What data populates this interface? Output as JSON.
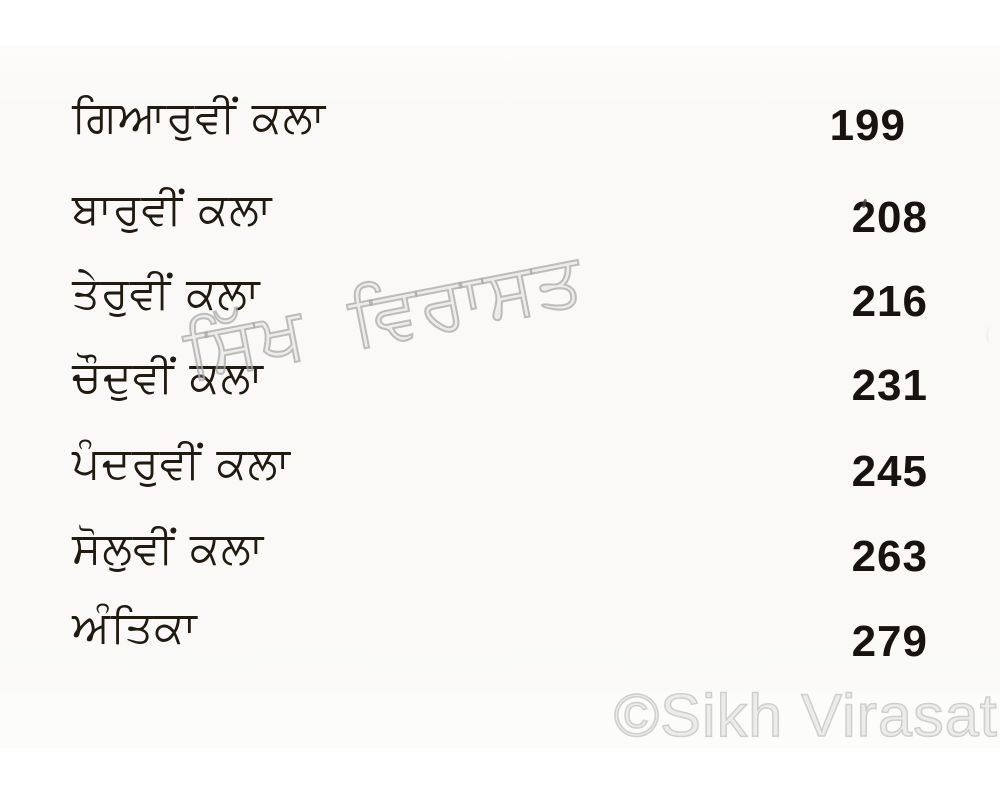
{
  "document": {
    "entries": [
      {
        "title": "ਗਿਆਰੁਵੀਂ ਕਲਾ",
        "page": "199"
      },
      {
        "title": "ਬਾਰੁਵੀਂ ਕਲਾ",
        "page": "208"
      },
      {
        "title": "ਤੇਰੁਵੀਂ ਕਲਾ",
        "page": "216"
      },
      {
        "title": "ਚੌਦੁਵੀਂ ਕਲਾ",
        "page": "231"
      },
      {
        "title": "ਪੰਦਰੁਵੀਂ ਕਲਾ",
        "page": "245"
      },
      {
        "title": "ਸੋਲੁਵੀਂ ਕਲਾ",
        "page": "263"
      },
      {
        "title": "ਅੰਤਿਕਾ",
        "page": "279"
      }
    ],
    "watermarks": {
      "diagonal": "ਸਿੱਖ ਵਿਰਾਸਤ",
      "corner": "©Sikh Virasat"
    },
    "colors": {
      "ink": "#211a10",
      "page_bg": "#faf9f7",
      "diagonal_watermark_stroke": "#aaaaaa",
      "corner_watermark": "#cfcfcf"
    }
  }
}
